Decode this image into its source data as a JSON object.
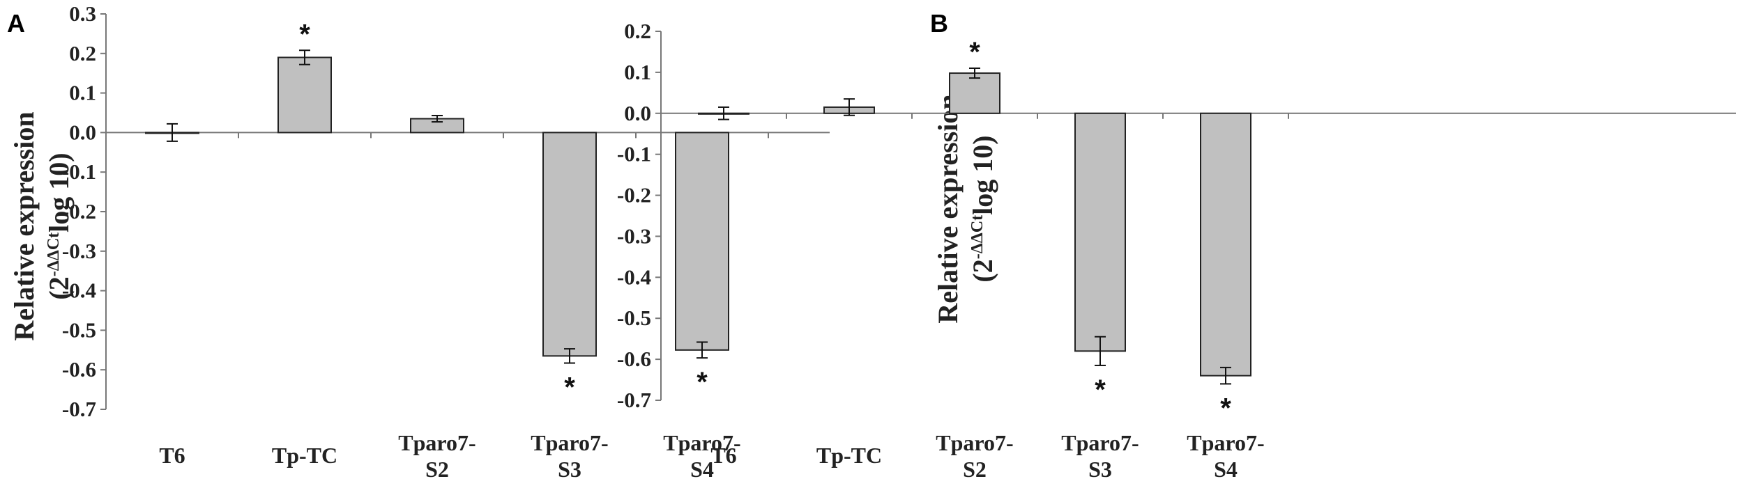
{
  "figure": {
    "colors": {
      "bar_fill": "#c0c0c0",
      "bar_stroke": "#222222",
      "axis": "#777777",
      "text": "#222222"
    }
  },
  "chart_data": [
    {
      "panel": "A",
      "type": "bar",
      "categories": [
        [
          "T6"
        ],
        [
          "Tp-TC"
        ],
        [
          "Tparo7-",
          "S2"
        ],
        [
          "Tparo7-",
          "S3"
        ],
        [
          "Tparo7-",
          "S4"
        ]
      ],
      "values": [
        0.0,
        0.19,
        0.035,
        -0.565,
        -0.55
      ],
      "errors": [
        0.022,
        0.018,
        0.008,
        0.018,
        0.02
      ],
      "significant": [
        false,
        true,
        false,
        true,
        true
      ],
      "significance_mark": "*",
      "ylabel": "Relative expression",
      "ylabel_sub": [
        "(2",
        "-ΔΔCt",
        "log 10)"
      ],
      "ylim": [
        -0.7,
        0.3
      ],
      "yticks": [
        0.3,
        0.2,
        0.1,
        0.0,
        -0.1,
        -0.2,
        -0.3,
        -0.4,
        -0.5,
        -0.6,
        -0.7
      ],
      "ytick_labels": [
        "0.3",
        "0.2",
        "0.1",
        "0.0",
        "-0.1",
        "-0.2",
        "-0.3",
        "-0.4",
        "-0.5",
        "-0.6",
        "-0.7"
      ],
      "grid": false,
      "legend": "none"
    },
    {
      "panel": "B",
      "type": "bar",
      "categories": [
        [
          "T6"
        ],
        [
          "Tp-TC"
        ],
        [
          "Tparo7-",
          "S2"
        ],
        [
          "Tparo7-",
          "S3"
        ],
        [
          "Tparo7-",
          "S4"
        ]
      ],
      "values": [
        0.0,
        0.015,
        0.098,
        -0.58,
        -0.64
      ],
      "errors": [
        0.015,
        0.02,
        0.012,
        0.035,
        0.02
      ],
      "significant": [
        false,
        false,
        true,
        true,
        true
      ],
      "significance_mark": "*",
      "ylabel": "Relative expression",
      "ylabel_sub": [
        "(2",
        "-ΔΔCt",
        "log 10)"
      ],
      "ylim": [
        -0.7,
        0.2
      ],
      "yticks": [
        0.2,
        0.1,
        0.0,
        -0.1,
        -0.2,
        -0.3,
        -0.4,
        -0.5,
        -0.6,
        -0.7
      ],
      "ytick_labels": [
        "0.2",
        "0.1",
        "0.0",
        "-0.1",
        "-0.2",
        "-0.3",
        "-0.4",
        "-0.5",
        "-0.6",
        "-0.7"
      ],
      "grid": false,
      "legend": "none"
    }
  ]
}
